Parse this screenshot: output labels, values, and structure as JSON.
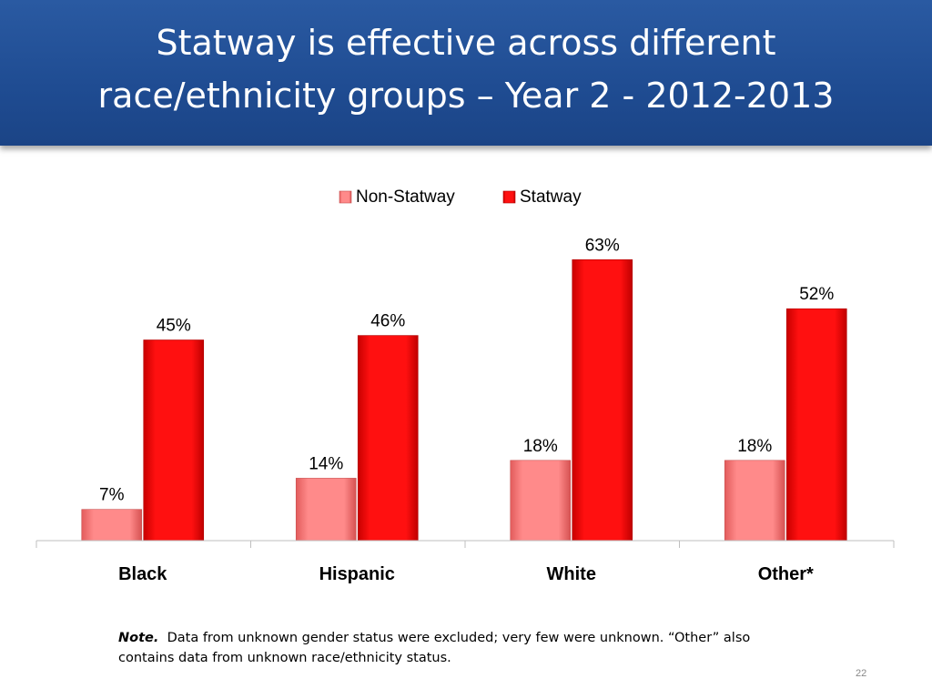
{
  "title": {
    "line1": "Statway is effective across different",
    "line2": "race/ethnicity groups – Year 2 - 2012-2013"
  },
  "chart_data": {
    "type": "bar",
    "categories": [
      "Black",
      "Hispanic",
      "White",
      "Other*"
    ],
    "series": [
      {
        "name": "Non-Statway",
        "values": [
          7,
          14,
          18,
          18
        ],
        "labels": [
          "7%",
          "14%",
          "18%",
          "18%"
        ],
        "color": "#f47a7a"
      },
      {
        "name": "Statway",
        "values": [
          45,
          46,
          63,
          52
        ],
        "labels": [
          "45%",
          "46%",
          "63%",
          "52%"
        ],
        "color": "#ee0000"
      }
    ],
    "ylim": [
      0,
      70
    ],
    "legend": "top-center",
    "grid": false
  },
  "note": {
    "label": "Note.",
    "text": "Data from unknown gender status were excluded; very few were unknown. “Other” also contains data from unknown race/ethnicity status."
  },
  "page_number": "22"
}
